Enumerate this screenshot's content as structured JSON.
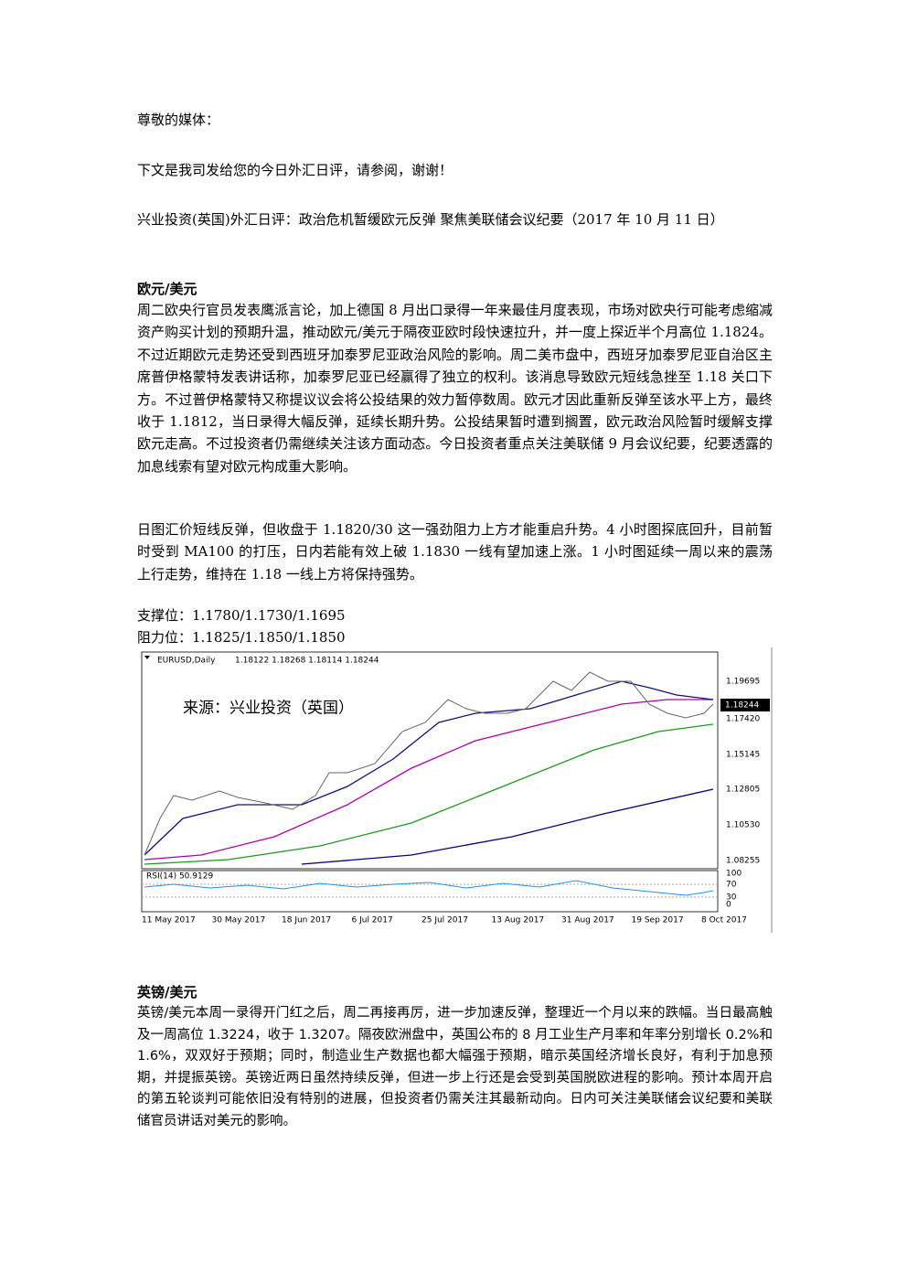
{
  "greeting": "尊敬的媒体：",
  "intro": "下文是我司发给您的今日外汇日评，请参阅，谢谢！",
  "headline": "兴业投资(英国)外汇日评：政治危机暂缓欧元反弹 聚焦美联储会议纪要（2017 年 10 月 11 日）",
  "sections": [
    {
      "title": "欧元/美元",
      "paragraphs": [
        "周二欧央行官员发表鹰派言论，加上德国 8 月出口录得一年来最佳月度表现，市场对欧央行可能考虑缩减资产购买计划的预期升温，推动欧元/美元于隔夜亚欧时段快速拉升，并一度上探近半个月高位 1.1824。不过近期欧元走势还受到西班牙加泰罗尼亚政治风险的影响。周二美市盘中，西班牙加泰罗尼亚自治区主席普伊格蒙特发表讲话称，加泰罗尼亚已经赢得了独立的权利。该消息导致欧元短线急挫至 1.18 关口下方。不过普伊格蒙特又称提议议会将公投结果的效力暂停数周。欧元才因此重新反弹至该水平上方，最终收于 1.1812，当日录得大幅反弹，延续长期升势。公投结果暂时遭到搁置，欧元政治风险暂时缓解支撑欧元走高。不过投资者仍需继续关注该方面动态。今日投资者重点关注美联储 9 月会议纪要，纪要透露的加息线索有望对欧元构成重大影响。",
        "日图汇价短线反弹，但收盘于 1.1820/30 这一强劲阻力上方才能重启升势。4 小时图探底回升，目前暂时受到 MA100 的打压，日内若能有效上破 1.1830 一线有望加速上涨。1 小时图延续一周以来的震荡上行走势，维持在 1.18 一线上方将保持强势。"
      ],
      "levels": [
        "支撑位：1.1780/1.1730/1.1695",
        "阻力位：1.1825/1.1850/1.1850"
      ]
    },
    {
      "title": "英镑/美元",
      "paragraphs": [
        "英镑/美元本周一录得开门红之后，周二再接再厉，进一步加速反弹，整理近一个月以来的跌幅。当日最高触及一周高位 1.3224，收于 1.3207。隔夜欧洲盘中，英国公布的 8 月工业生产月率和年率分别增长 0.2%和 1.6%，双双好于预期；同时，制造业生产数据也都大幅强于预期，暗示英国经济增长良好，有利于加息预期，并提振英镑。英镑近两日虽然持续反弹，但进一步上行还是会受到英国脱欧进程的影响。预计本周开启的第五轮谈判可能依旧没有特别的进展，但投资者仍需关注其最新动向。日内可关注美联储会议纪要和美联储官员讲话对美元的影响。"
      ]
    }
  ],
  "figure": {
    "symbol": "EURUSD,Daily",
    "ohlc": "1.18122 1.18268 1.18114 1.18244",
    "watermark": "来源：兴业投资（英国）",
    "price_labels": [
      "1.19695",
      "1.17420",
      "1.15145",
      "1.12805",
      "1.10530",
      "1.08255"
    ],
    "current_price": "1.18244",
    "rsi_label": "RSI(14) 50.9129",
    "rsi_levels": [
      "100",
      "70",
      "30",
      "0"
    ],
    "dates": [
      "11 May 2017",
      "30 May 2017",
      "18 Jun 2017",
      "6 Jul 2017",
      "25 Jul 2017",
      "13 Aug 2017",
      "31 Aug 2017",
      "19 Sep 2017",
      "8 Oct 2017"
    ]
  }
}
